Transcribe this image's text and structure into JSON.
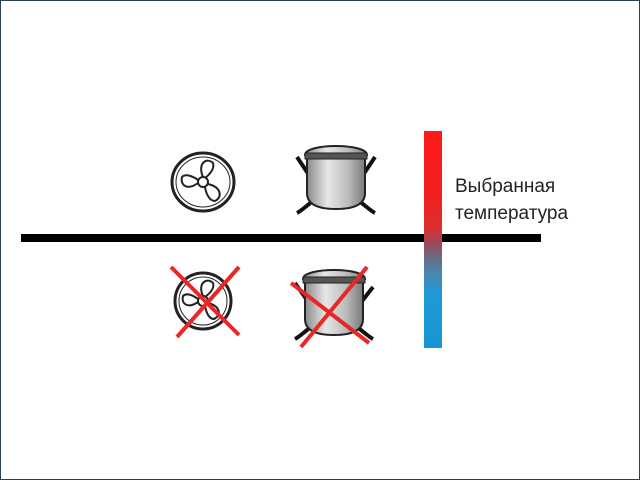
{
  "label": {
    "line1": "Выбранная",
    "line2": "температура"
  },
  "icons": {
    "fan_on": "fan-icon",
    "compressor_on": "compressor-icon",
    "fan_off": "fan-icon-crossed",
    "compressor_off": "compressor-icon-crossed"
  },
  "colors": {
    "hot": "#ff1a1a",
    "cold": "#1796d4",
    "cross": "#e82828",
    "line": "#000000"
  }
}
